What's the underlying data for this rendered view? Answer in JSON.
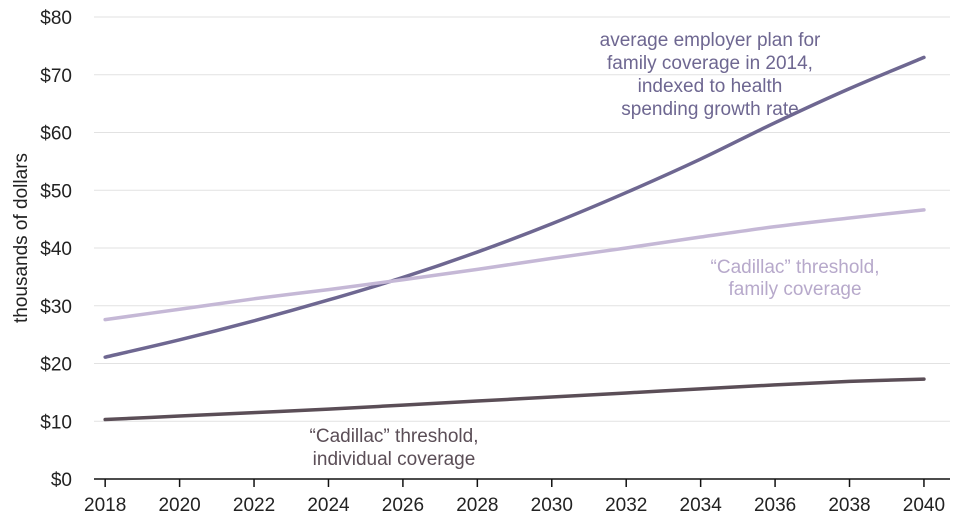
{
  "chart_data": {
    "type": "line",
    "ylabel": "thousands of dollars",
    "xlabel": "",
    "xlim": [
      2017.7,
      2040.7
    ],
    "ylim": [
      0,
      80
    ],
    "grid": true,
    "x_ticks": [
      "2018",
      "2020",
      "2022",
      "2024",
      "2026",
      "2028",
      "2030",
      "2032",
      "2034",
      "2036",
      "2038",
      "2040"
    ],
    "y_ticks": [
      "$0",
      "$10",
      "$20",
      "$30",
      "$40",
      "$50",
      "$60",
      "$70",
      "$80"
    ],
    "x": [
      2018,
      2020,
      2022,
      2024,
      2026,
      2028,
      2030,
      2032,
      2034,
      2036,
      2038,
      2040
    ],
    "series": [
      {
        "color": "#6e6791",
        "values": [
          21.1,
          24.1,
          27.4,
          31.0,
          34.9,
          39.3,
          44.2,
          49.6,
          55.4,
          61.7,
          67.6,
          73.0
        ]
      },
      {
        "color": "#c5b8d6",
        "values": [
          27.6,
          29.4,
          31.2,
          32.8,
          34.5,
          36.3,
          38.2,
          40.0,
          41.9,
          43.7,
          45.2,
          46.6
        ]
      },
      {
        "color": "#5b4e57",
        "values": [
          10.3,
          10.9,
          11.5,
          12.1,
          12.8,
          13.5,
          14.2,
          14.9,
          15.6,
          16.3,
          16.9,
          17.3
        ]
      }
    ],
    "annotations": [
      {
        "lines": [
          "average employer plan for",
          "family coverage in 2014,",
          "indexed to health",
          "spending growth rate"
        ],
        "color": "#6e6791"
      },
      {
        "lines": [
          "“Cadillac” threshold,",
          "family coverage"
        ],
        "color": "#b7a9cb"
      },
      {
        "lines": [
          "“Cadillac” threshold,",
          "individual coverage"
        ],
        "color": "#5b4e57"
      }
    ]
  }
}
